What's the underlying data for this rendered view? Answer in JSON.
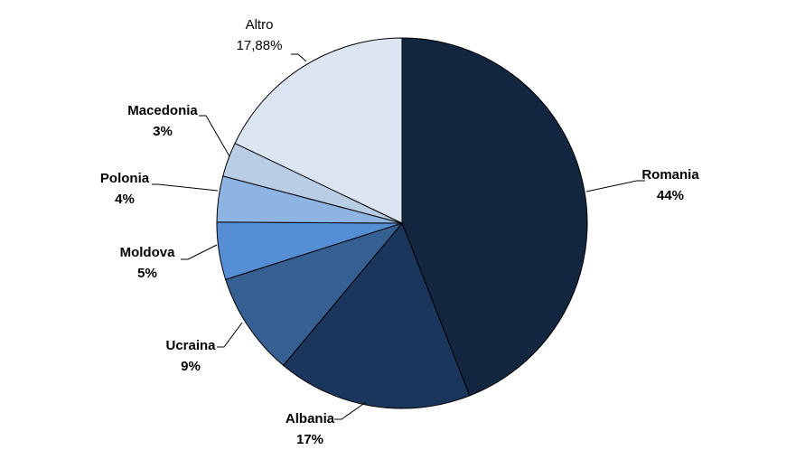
{
  "chart_data": {
    "type": "pie",
    "title": "",
    "start": "top",
    "direction": "clockwise",
    "slices": [
      {
        "label": "Romania",
        "value": 44,
        "display": "44%",
        "color": "#13263f",
        "bold": true
      },
      {
        "label": "Albania",
        "value": 17,
        "display": "17%",
        "color": "#1b365d",
        "bold": true
      },
      {
        "label": "Ucraina",
        "value": 9,
        "display": "9%",
        "color": "#366092",
        "bold": true
      },
      {
        "label": "Moldova",
        "value": 5,
        "display": "5%",
        "color": "#558ed5",
        "bold": true
      },
      {
        "label": "Polonia",
        "value": 4,
        "display": "4%",
        "color": "#8eb4e3",
        "bold": true
      },
      {
        "label": "Macedonia",
        "value": 3,
        "display": "3%",
        "color": "#b9cde5",
        "bold": true
      },
      {
        "label": "Altro",
        "value": 17.88,
        "display": "17,88%",
        "color": "#dce6f2",
        "bold": false
      }
    ]
  }
}
